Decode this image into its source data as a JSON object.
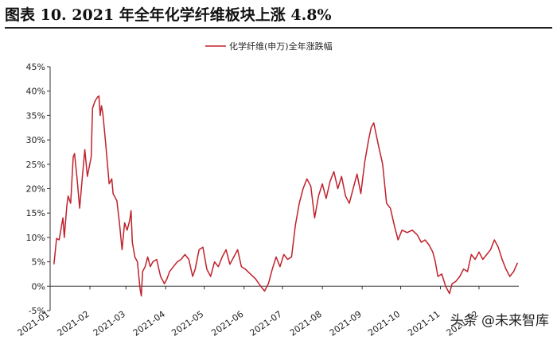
{
  "figure_title": "图表 10. 2021 年全年化学纤维板块上涨 4.8%",
  "watermark": "头条 @未来智库",
  "chart_data": {
    "type": "line",
    "series": [
      {
        "name": "化学纤维(申万)全年涨跌幅",
        "color": "#c0212b",
        "points": [
          [
            "2021-01-04",
            4.5
          ],
          [
            "2021-01-06",
            9.8
          ],
          [
            "2021-01-08",
            9.5
          ],
          [
            "2021-01-11",
            14.0
          ],
          [
            "2021-01-12",
            10.0
          ],
          [
            "2021-01-14",
            16.5
          ],
          [
            "2021-01-15",
            18.5
          ],
          [
            "2021-01-17",
            17.0
          ],
          [
            "2021-01-19",
            26.5
          ],
          [
            "2021-01-20",
            27.2
          ],
          [
            "2021-01-22",
            22.0
          ],
          [
            "2021-01-24",
            16.0
          ],
          [
            "2021-01-26",
            22.0
          ],
          [
            "2021-01-28",
            28.0
          ],
          [
            "2021-01-30",
            22.5
          ],
          [
            "2021-02-02",
            26.5
          ],
          [
            "2021-02-03",
            36.5
          ],
          [
            "2021-02-05",
            38.0
          ],
          [
            "2021-02-07",
            38.8
          ],
          [
            "2021-02-08",
            39.0
          ],
          [
            "2021-02-09",
            35.0
          ],
          [
            "2021-02-10",
            37.0
          ],
          [
            "2021-02-11",
            35.5
          ],
          [
            "2021-02-13",
            30.0
          ],
          [
            "2021-02-16",
            21.0
          ],
          [
            "2021-02-18",
            22.0
          ],
          [
            "2021-02-19",
            19.0
          ],
          [
            "2021-02-22",
            17.5
          ],
          [
            "2021-02-24",
            13.0
          ],
          [
            "2021-02-26",
            7.5
          ],
          [
            "2021-02-28",
            13.0
          ],
          [
            "2021-03-02",
            11.5
          ],
          [
            "2021-03-04",
            13.5
          ],
          [
            "2021-03-05",
            15.5
          ],
          [
            "2021-03-06",
            9.0
          ],
          [
            "2021-03-08",
            6.0
          ],
          [
            "2021-03-10",
            5.0
          ],
          [
            "2021-03-12",
            -0.5
          ],
          [
            "2021-03-13",
            -2.0
          ],
          [
            "2021-03-14",
            3.0
          ],
          [
            "2021-03-16",
            4.0
          ],
          [
            "2021-03-18",
            6.0
          ],
          [
            "2021-03-20",
            4.0
          ],
          [
            "2021-03-22",
            5.0
          ],
          [
            "2021-03-25",
            5.5
          ],
          [
            "2021-03-28",
            2.0
          ],
          [
            "2021-03-31",
            0.5
          ],
          [
            "2021-04-02",
            1.5
          ],
          [
            "2021-04-04",
            3.0
          ],
          [
            "2021-04-07",
            4.0
          ],
          [
            "2021-04-10",
            5.0
          ],
          [
            "2021-04-13",
            5.5
          ],
          [
            "2021-04-16",
            6.5
          ],
          [
            "2021-04-19",
            5.5
          ],
          [
            "2021-04-22",
            2.0
          ],
          [
            "2021-04-24",
            3.5
          ],
          [
            "2021-04-27",
            7.5
          ],
          [
            "2021-04-30",
            8.0
          ],
          [
            "2021-05-03",
            3.5
          ],
          [
            "2021-05-06",
            2.0
          ],
          [
            "2021-05-09",
            5.0
          ],
          [
            "2021-05-12",
            4.0
          ],
          [
            "2021-05-15",
            6.0
          ],
          [
            "2021-05-18",
            7.5
          ],
          [
            "2021-05-21",
            4.5
          ],
          [
            "2021-05-24",
            6.0
          ],
          [
            "2021-05-27",
            7.5
          ],
          [
            "2021-05-30",
            4.0
          ],
          [
            "2021-06-02",
            3.5
          ],
          [
            "2021-06-06",
            2.5
          ],
          [
            "2021-06-10",
            1.5
          ],
          [
            "2021-06-14",
            0.0
          ],
          [
            "2021-06-17",
            -1.0
          ],
          [
            "2021-06-20",
            0.5
          ],
          [
            "2021-06-23",
            3.5
          ],
          [
            "2021-06-26",
            6.0
          ],
          [
            "2021-06-29",
            4.0
          ],
          [
            "2021-07-02",
            6.5
          ],
          [
            "2021-07-05",
            5.5
          ],
          [
            "2021-07-08",
            6.0
          ],
          [
            "2021-07-11",
            12.5
          ],
          [
            "2021-07-14",
            17.0
          ],
          [
            "2021-07-17",
            20.0
          ],
          [
            "2021-07-20",
            22.0
          ],
          [
            "2021-07-23",
            20.5
          ],
          [
            "2021-07-26",
            14.0
          ],
          [
            "2021-07-29",
            18.5
          ],
          [
            "2021-08-01",
            21.0
          ],
          [
            "2021-08-04",
            18.0
          ],
          [
            "2021-08-07",
            21.5
          ],
          [
            "2021-08-10",
            23.5
          ],
          [
            "2021-08-13",
            20.0
          ],
          [
            "2021-08-16",
            22.5
          ],
          [
            "2021-08-19",
            18.5
          ],
          [
            "2021-08-22",
            17.0
          ],
          [
            "2021-08-25",
            20.0
          ],
          [
            "2021-08-28",
            23.0
          ],
          [
            "2021-08-31",
            19.0
          ],
          [
            "2021-09-03",
            25.5
          ],
          [
            "2021-09-06",
            30.0
          ],
          [
            "2021-09-08",
            32.5
          ],
          [
            "2021-09-10",
            33.5
          ],
          [
            "2021-09-12",
            31.0
          ],
          [
            "2021-09-14",
            28.5
          ],
          [
            "2021-09-17",
            25.0
          ],
          [
            "2021-09-20",
            17.0
          ],
          [
            "2021-09-23",
            16.0
          ],
          [
            "2021-09-26",
            12.5
          ],
          [
            "2021-09-29",
            9.5
          ],
          [
            "2021-10-02",
            11.5
          ],
          [
            "2021-10-06",
            11.0
          ],
          [
            "2021-10-10",
            11.5
          ],
          [
            "2021-10-14",
            10.5
          ],
          [
            "2021-10-17",
            9.0
          ],
          [
            "2021-10-20",
            9.5
          ],
          [
            "2021-10-23",
            8.5
          ],
          [
            "2021-10-26",
            7.0
          ],
          [
            "2021-10-28",
            5.0
          ],
          [
            "2021-10-30",
            2.0
          ],
          [
            "2021-11-02",
            2.5
          ],
          [
            "2021-11-05",
            0.0
          ],
          [
            "2021-11-08",
            -1.5
          ],
          [
            "2021-11-10",
            0.5
          ],
          [
            "2021-11-13",
            1.0
          ],
          [
            "2021-11-16",
            2.0
          ],
          [
            "2021-11-19",
            3.5
          ],
          [
            "2021-11-22",
            3.0
          ],
          [
            "2021-11-25",
            6.5
          ],
          [
            "2021-11-28",
            5.5
          ],
          [
            "2021-12-01",
            7.0
          ],
          [
            "2021-12-04",
            5.5
          ],
          [
            "2021-12-07",
            6.5
          ],
          [
            "2021-12-10",
            7.5
          ],
          [
            "2021-12-13",
            9.5
          ],
          [
            "2021-12-16",
            8.0
          ],
          [
            "2021-12-19",
            5.5
          ],
          [
            "2021-12-22",
            3.5
          ],
          [
            "2021-12-25",
            2.0
          ],
          [
            "2021-12-28",
            3.0
          ],
          [
            "2021-12-31",
            4.8
          ]
        ]
      }
    ],
    "x_ticks": [
      "2021-01",
      "2021-02",
      "2021-03",
      "2021-04",
      "2021-05",
      "2021-06",
      "2021-07",
      "2021-08",
      "2021-09",
      "2021-10",
      "2021-11",
      "2021-12"
    ],
    "y_ticks": [
      "45%",
      "40%",
      "35%",
      "30%",
      "25%",
      "20%",
      "15%",
      "10%",
      "5%",
      "0%",
      "-5%"
    ],
    "ylim": [
      -5,
      45
    ],
    "xlim": [
      "2021-01-01",
      "2022-01-01"
    ],
    "legend_position": "top-center",
    "grid": false
  }
}
